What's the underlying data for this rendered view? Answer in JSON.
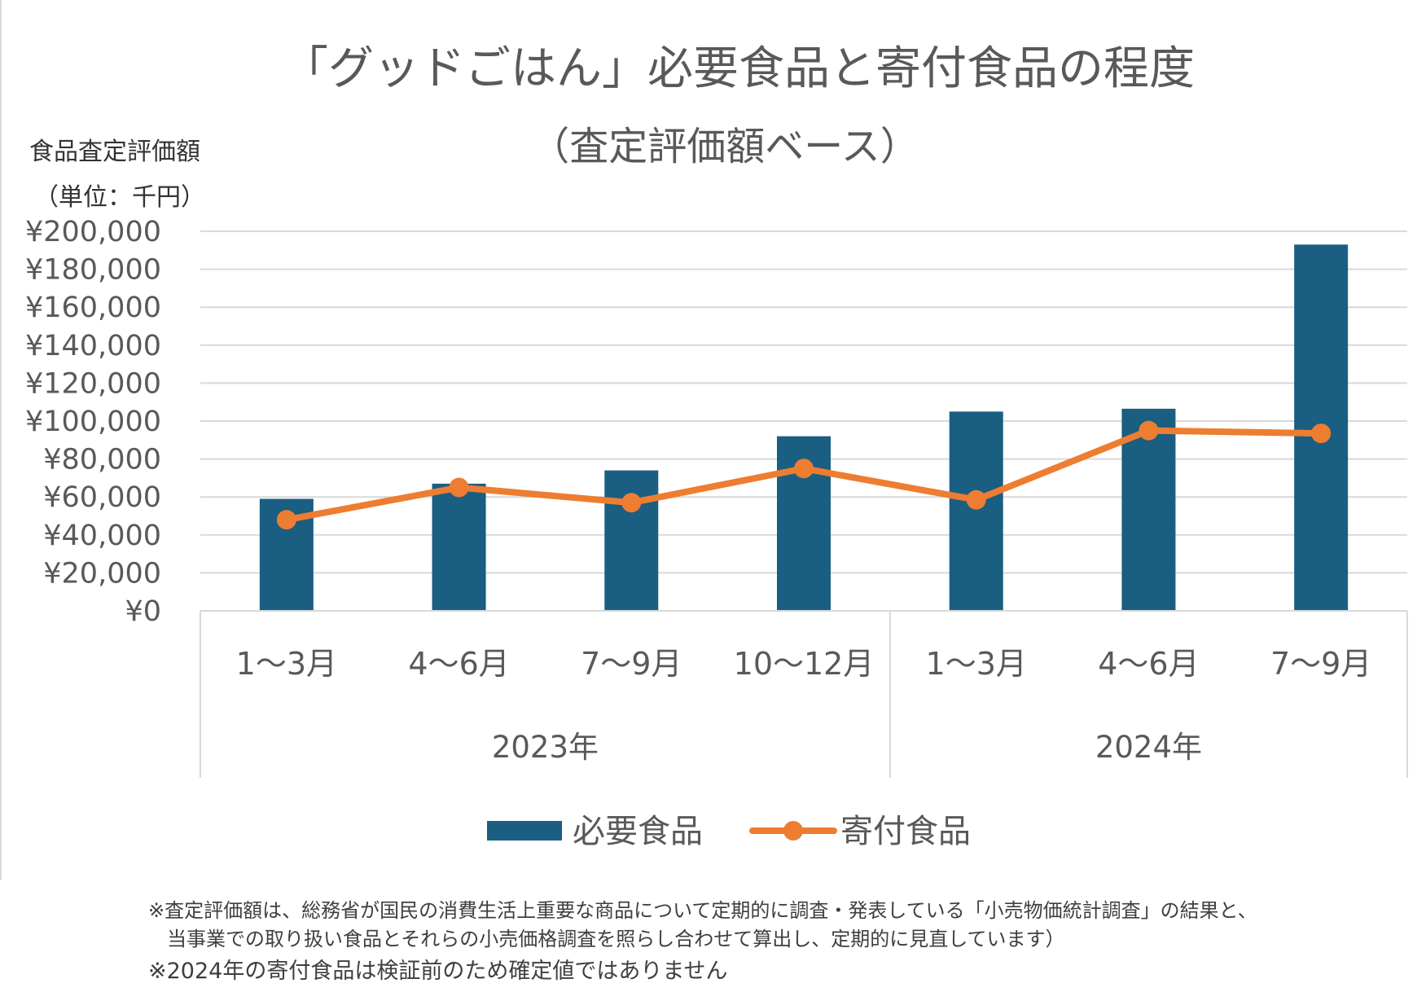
{
  "chart_data": {
    "type": "bar",
    "title": "「グッドごはん」必要食品と寄付食品の程度",
    "subtitle": "（査定評価額ベース）",
    "ylabel": "食品査定評価額",
    "ylabel_unit": "（単位：千円）",
    "ylim": [
      0,
      200000
    ],
    "ytick_step": 20000,
    "ytick_labels": [
      "¥0",
      "¥20,000",
      "¥40,000",
      "¥60,000",
      "¥80,000",
      "¥100,000",
      "¥120,000",
      "¥140,000",
      "¥160,000",
      "¥180,000",
      "¥200,000"
    ],
    "categories": [
      "1～3月",
      "4～6月",
      "7～9月",
      "10～12月",
      "1～3月",
      "4～6月",
      "7～9月"
    ],
    "groups": [
      {
        "label": "2023年",
        "count": 4
      },
      {
        "label": "2024年",
        "count": 3
      }
    ],
    "series": [
      {
        "name": "必要食品",
        "kind": "bar",
        "color": "#1a5e82",
        "values": [
          59000,
          67000,
          74000,
          92000,
          105000,
          106500,
          193000
        ]
      },
      {
        "name": "寄付食品",
        "kind": "line",
        "color": "#ed7d31",
        "values": [
          48000,
          65000,
          57000,
          75000,
          58500,
          95000,
          93500
        ]
      }
    ],
    "grid": true,
    "legend": "bottom"
  },
  "footnotes": [
    "※査定評価額は、総務省が国民の消費生活上重要な商品について定期的に調査・発表している「小売物価統計調査」の結果と、",
    "当事業での取り扱い食品とそれらの小売価格調査を照らし合わせて算出し、定期的に見直しています）",
    "※2024年の寄付食品は検証前のため確定値ではありません"
  ],
  "colors": {
    "axis_text": "#595959",
    "grid": "#d9d9d9"
  }
}
